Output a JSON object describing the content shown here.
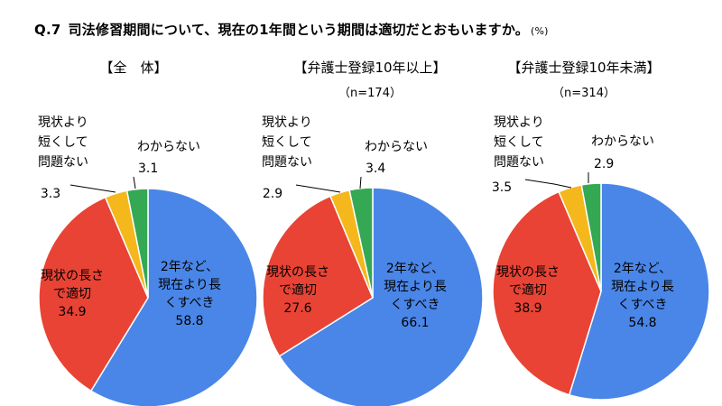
{
  "question": {
    "number": "Q.7",
    "text": "司法修習期間について、現在の1年間という期間は適切だとおもいますか。",
    "unit": "(%)"
  },
  "colors": {
    "longer": "#4a86e8",
    "appropriate": "#e84335",
    "shorter_ok": "#f4b81c",
    "unknown": "#34a853"
  },
  "chart_data": [
    {
      "type": "pie",
      "title": "【全　体】",
      "subtitle": "",
      "slices": [
        {
          "label": "2年など、現在より長くすべき",
          "label_lines": [
            "2年など、",
            "現在より長",
            "くすべき"
          ],
          "value": 58.8,
          "color": "#4a86e8"
        },
        {
          "label": "現状の長さで適切",
          "label_lines": [
            "現状の長さ",
            "で適切"
          ],
          "value": 34.9,
          "color": "#e84335"
        },
        {
          "label": "現状より短くして問題ない",
          "label_lines": [
            "現状より",
            "短くして",
            "問題ない"
          ],
          "value": 3.3,
          "color": "#f4b81c"
        },
        {
          "label": "わからない",
          "label_lines": [
            "わからない"
          ],
          "value": 3.1,
          "color": "#34a853"
        }
      ]
    },
    {
      "type": "pie",
      "title": "【弁護士登録10年以上】",
      "subtitle": "（n=174）",
      "slices": [
        {
          "label": "2年など、現在より長くすべき",
          "label_lines": [
            "2年など、",
            "現在より長",
            "くすべき"
          ],
          "value": 66.1,
          "color": "#4a86e8"
        },
        {
          "label": "現状の長さで適切",
          "label_lines": [
            "現状の長さ",
            "で適切"
          ],
          "value": 27.6,
          "color": "#e84335"
        },
        {
          "label": "現状より短くして問題ない",
          "label_lines": [
            "現状より",
            "短くして",
            "問題ない"
          ],
          "value": 2.9,
          "color": "#f4b81c"
        },
        {
          "label": "わからない",
          "label_lines": [
            "わからない"
          ],
          "value": 3.4,
          "color": "#34a853"
        }
      ]
    },
    {
      "type": "pie",
      "title": "【弁護士登録10年未満】",
      "subtitle": "（n=314）",
      "slices": [
        {
          "label": "2年など、現在より長くすべき",
          "label_lines": [
            "2年など、",
            "現在より長",
            "くすべき"
          ],
          "value": 54.8,
          "color": "#4a86e8"
        },
        {
          "label": "現状の長さで適切",
          "label_lines": [
            "現状の長さ",
            "で適切"
          ],
          "value": 38.9,
          "color": "#e84335"
        },
        {
          "label": "現状より短くして問題ない",
          "label_lines": [
            "現状より",
            "短くして",
            "問題ない"
          ],
          "value": 3.5,
          "color": "#f4b81c"
        },
        {
          "label": "わからない",
          "label_lines": [
            "わからない"
          ],
          "value": 2.9,
          "color": "#34a853"
        }
      ]
    }
  ]
}
